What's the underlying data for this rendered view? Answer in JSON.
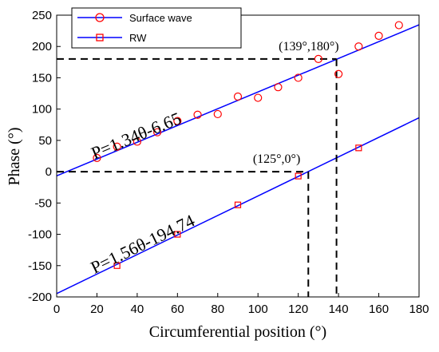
{
  "chart_data": {
    "type": "scatter",
    "xlabel": "Circumferential position (°)",
    "ylabel": "Phase (°)",
    "xlim": [
      0,
      180
    ],
    "ylim": [
      -200,
      250
    ],
    "xticks": [
      0,
      20,
      40,
      60,
      80,
      100,
      120,
      140,
      160,
      180
    ],
    "yticks": [
      -200,
      -150,
      -100,
      -50,
      0,
      50,
      100,
      150,
      200,
      250
    ],
    "legend_position": "top-left",
    "grid": false,
    "series": [
      {
        "name": "Surface wave",
        "marker": "circle",
        "color": "#ff0000",
        "line_color": "#0000ff",
        "x": [
          20,
          30,
          40,
          50,
          60,
          70,
          80,
          90,
          100,
          110,
          120,
          130,
          140,
          150,
          160,
          170
        ],
        "y": [
          22,
          40,
          48,
          63,
          81,
          91,
          92,
          120,
          118,
          135,
          150,
          180,
          156,
          200,
          217,
          234
        ],
        "fit": {
          "slope": 1.34,
          "intercept": -6.65,
          "x_range": [
            0,
            180
          ],
          "label": "P=1.34θ-6.65"
        }
      },
      {
        "name": "RW",
        "marker": "square",
        "color": "#ff0000",
        "line_color": "#0000ff",
        "x": [
          30,
          60,
          90,
          120,
          150
        ],
        "y": [
          -150,
          -100,
          -53,
          -7,
          38
        ],
        "fit": {
          "slope": 1.56,
          "intercept": -194.74,
          "x_range": [
            0,
            180
          ],
          "label": "P=1.56θ-194.74"
        }
      }
    ],
    "annotations": [
      {
        "text": "(139°,180°)",
        "x": 139,
        "y": 180
      },
      {
        "text": "(125°,0°)",
        "x": 125,
        "y": 0
      }
    ]
  }
}
